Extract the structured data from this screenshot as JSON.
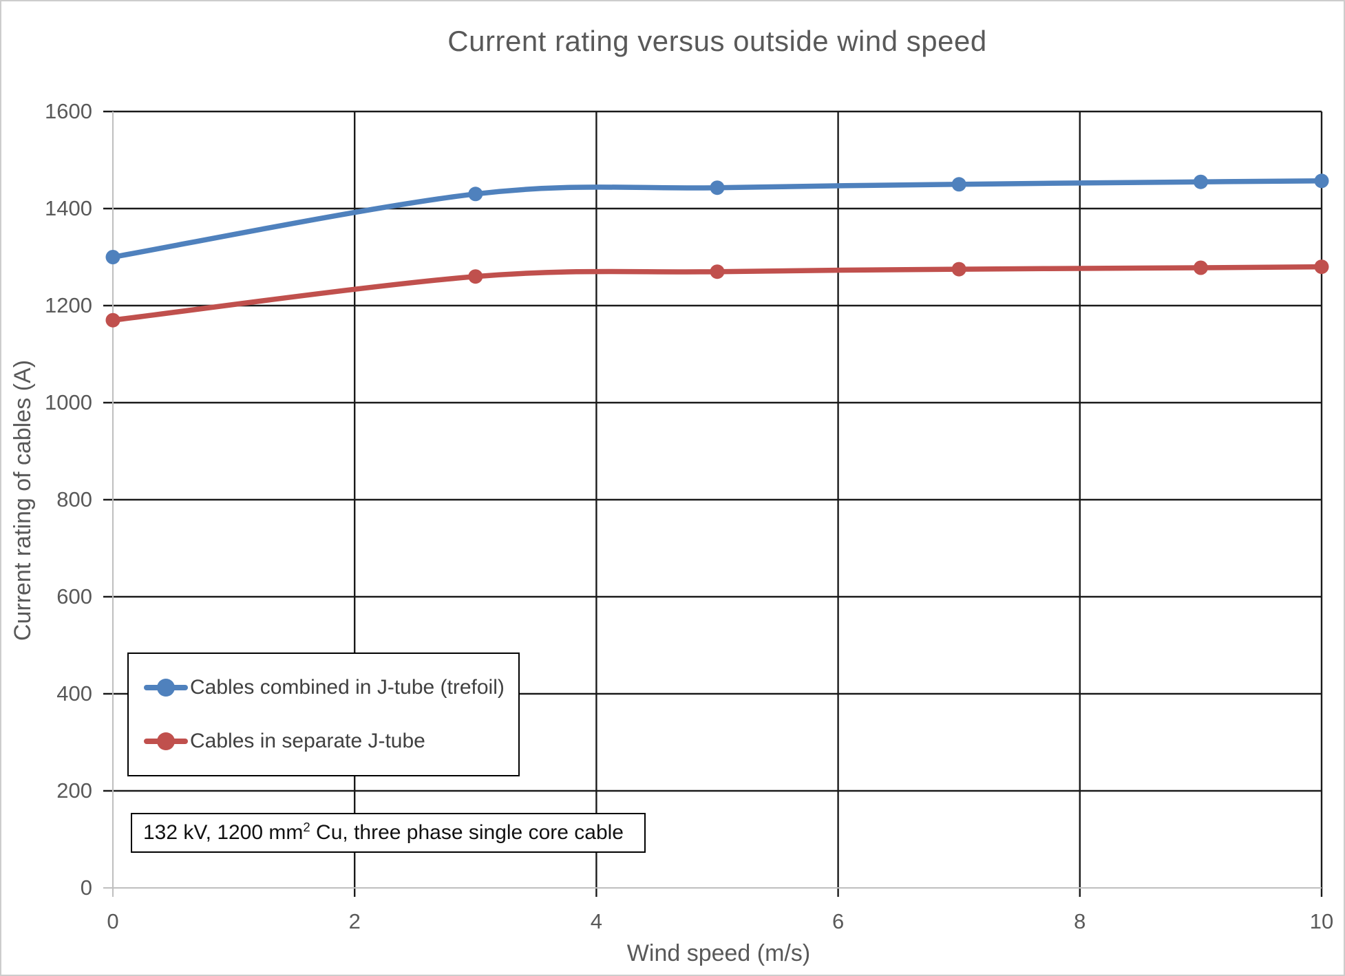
{
  "chart_data": {
    "type": "line",
    "title": "Current rating versus outside wind speed",
    "xlabel": "Wind speed (m/s)",
    "ylabel": "Current rating of cables (A)",
    "x": [
      0,
      3,
      5,
      7,
      9,
      10
    ],
    "series": [
      {
        "name": "Cables combined in J-tube (trefoil)",
        "color": "#4F81BD",
        "values": [
          1300,
          1430,
          1443,
          1450,
          1455,
          1457
        ]
      },
      {
        "name": "Cables in separate J-tube",
        "color": "#C0504D",
        "values": [
          1170,
          1260,
          1270,
          1275,
          1278,
          1280
        ]
      }
    ],
    "xlim": [
      0,
      10
    ],
    "ylim": [
      0,
      1600
    ],
    "xticks": [
      0,
      2,
      4,
      6,
      8,
      10
    ],
    "yticks": [
      0,
      200,
      400,
      600,
      800,
      1000,
      1200,
      1400,
      1600
    ],
    "grid": "major gridlines on both axes, dark solid",
    "line_style": "smoothed with round markers",
    "legend_position": "inside plot, lower-left, boxed",
    "annotation": {
      "text": "132 kV, 1200 mm² Cu, three phase single core cable",
      "before_sup": "132 kV, 1200 mm",
      "sup": "2",
      "after_sup": " Cu, three phase single core cable"
    },
    "theme": {
      "title_color": "#595959",
      "tick_label_color": "#595959",
      "axis_title_color": "#595959",
      "grid_color": "#1a1a1a",
      "axis_line_color": "#BFBFBF",
      "legend_text_color": "#404040",
      "legend_border_color": "#000000",
      "background": "#FFFFFF"
    }
  }
}
